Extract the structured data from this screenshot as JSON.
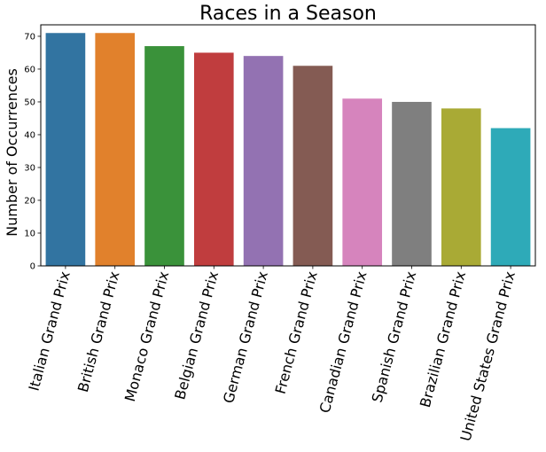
{
  "chart_data": {
    "type": "bar",
    "title": "Races in a Season",
    "xlabel": "",
    "ylabel": "Number of Occurrences",
    "ylim": [
      0,
      73.5
    ],
    "yticks": [
      0,
      10,
      20,
      30,
      40,
      50,
      60,
      70
    ],
    "grid": false,
    "categories": [
      "Italian Grand Prix",
      "British Grand Prix",
      "Monaco Grand Prix",
      "Belgian Grand Prix",
      "German Grand Prix",
      "French Grand Prix",
      "Canadian Grand Prix",
      "Spanish Grand Prix",
      "Brazilian Grand Prix",
      "United States Grand Prix"
    ],
    "values": [
      71,
      71,
      67,
      65,
      64,
      61,
      51,
      50,
      48,
      42
    ],
    "colors": [
      "#3274a1",
      "#e1812c",
      "#3a923a",
      "#c03d3e",
      "#9372b2",
      "#845b53",
      "#d684bd",
      "#7f7f7f",
      "#a9aa35",
      "#2eaab8"
    ]
  }
}
